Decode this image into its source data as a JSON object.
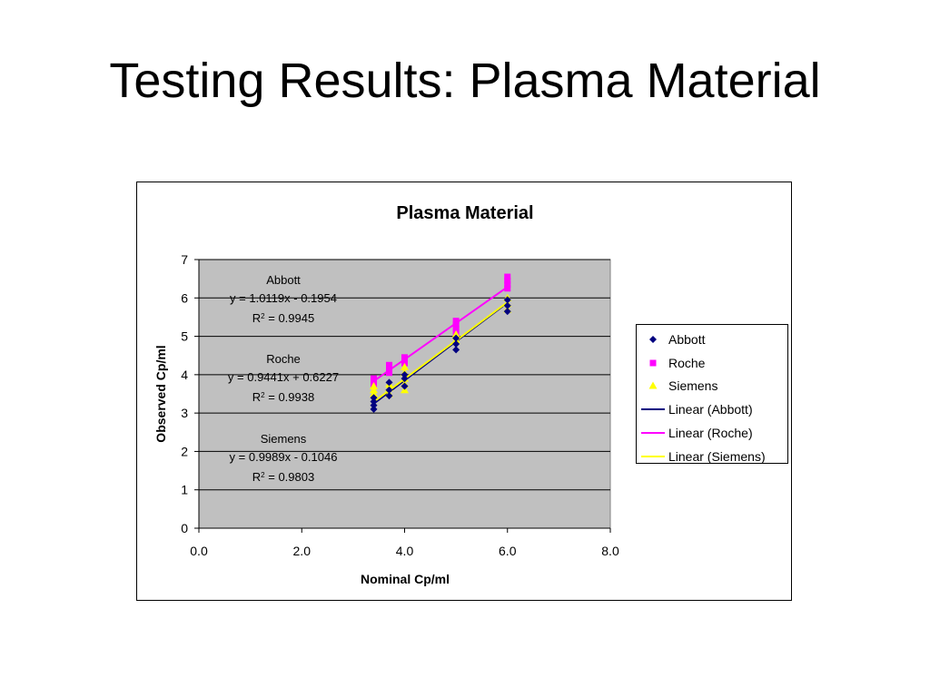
{
  "slide": {
    "title": "Testing Results: Plasma Material"
  },
  "colors": {
    "abbott": "#000080",
    "roche": "#FF00FF",
    "siemens": "#FFFF00",
    "plot_bg": "#C0C0C0"
  },
  "chart_data": {
    "type": "scatter",
    "title": "Plasma Material",
    "xlabel": "Nominal Cp/ml",
    "ylabel": "Observed Cp/ml",
    "xlim": [
      0,
      8
    ],
    "ylim": [
      0,
      7
    ],
    "x_ticks": [
      "0.0",
      "2.0",
      "4.0",
      "6.0",
      "8.0"
    ],
    "x_tick_values": [
      0,
      2,
      4,
      6,
      8
    ],
    "y_ticks": [
      "0",
      "1",
      "2",
      "3",
      "4",
      "5",
      "6",
      "7"
    ],
    "y_tick_values": [
      0,
      1,
      2,
      3,
      4,
      5,
      6,
      7
    ],
    "grid": "horizontal",
    "legend_position": "right",
    "series": [
      {
        "name": "Abbott",
        "marker": "diamond",
        "color": "#000080",
        "points": [
          [
            3.4,
            3.1
          ],
          [
            3.4,
            3.2
          ],
          [
            3.4,
            3.3
          ],
          [
            3.4,
            3.4
          ],
          [
            3.7,
            3.45
          ],
          [
            3.7,
            3.6
          ],
          [
            3.7,
            3.8
          ],
          [
            4.0,
            3.7
          ],
          [
            4.0,
            3.9
          ],
          [
            4.0,
            4.0
          ],
          [
            5.0,
            4.65
          ],
          [
            5.0,
            4.8
          ],
          [
            5.0,
            4.95
          ],
          [
            6.0,
            5.65
          ],
          [
            6.0,
            5.8
          ],
          [
            6.0,
            5.95
          ]
        ]
      },
      {
        "name": "Roche",
        "marker": "square",
        "color": "#FF00FF",
        "points": [
          [
            3.4,
            3.75
          ],
          [
            3.4,
            3.85
          ],
          [
            3.4,
            3.9
          ],
          [
            3.7,
            4.05
          ],
          [
            3.7,
            4.15
          ],
          [
            3.7,
            4.25
          ],
          [
            4.0,
            4.3
          ],
          [
            4.0,
            4.4
          ],
          [
            4.0,
            4.45
          ],
          [
            5.0,
            5.1
          ],
          [
            5.0,
            5.2
          ],
          [
            5.0,
            5.3
          ],
          [
            5.0,
            5.4
          ],
          [
            6.0,
            6.25
          ],
          [
            6.0,
            6.35
          ],
          [
            6.0,
            6.45
          ],
          [
            6.0,
            6.55
          ]
        ]
      },
      {
        "name": "Siemens",
        "marker": "triangle",
        "color": "#FFFF00",
        "points": [
          [
            3.4,
            3.5
          ],
          [
            3.4,
            3.6
          ],
          [
            3.4,
            3.7
          ],
          [
            3.7,
            3.5
          ],
          [
            3.7,
            3.65
          ],
          [
            3.7,
            3.75
          ],
          [
            4.0,
            3.6
          ],
          [
            4.0,
            3.75
          ],
          [
            4.0,
            3.9
          ],
          [
            4.0,
            4.05
          ],
          [
            4.0,
            4.2
          ],
          [
            5.0,
            4.9
          ],
          [
            5.0,
            5.0
          ],
          [
            5.0,
            5.05
          ],
          [
            6.0,
            5.7
          ],
          [
            6.0,
            5.85
          ],
          [
            6.0,
            6.0
          ]
        ]
      }
    ],
    "trendlines": [
      {
        "name": "Linear (Abbott)",
        "series": "Abbott",
        "color": "#000080",
        "slope": 1.0119,
        "intercept": -0.1954,
        "x_range": [
          3.4,
          6.0
        ]
      },
      {
        "name": "Linear (Roche)",
        "series": "Roche",
        "color": "#FF00FF",
        "slope": 0.9441,
        "intercept": 0.6227,
        "x_range": [
          3.4,
          6.0
        ]
      },
      {
        "name": "Linear (Siemens)",
        "series": "Siemens",
        "color": "#FFFF00",
        "slope": 0.9989,
        "intercept": -0.1046,
        "x_range": [
          3.4,
          6.0
        ]
      }
    ],
    "annotations": [
      {
        "label": "Abbott",
        "equation": "y = 1.0119x - 0.1954",
        "r2_prefix": "R",
        "r2_sup": "2",
        "r2_value": " = 0.9945"
      },
      {
        "label": "Roche",
        "equation": "y = 0.9441x + 0.6227",
        "r2_prefix": "R",
        "r2_sup": "2",
        "r2_value": " = 0.9938"
      },
      {
        "label": "Siemens",
        "equation": "y = 0.9989x - 0.1046",
        "r2_prefix": "R",
        "r2_sup": "2",
        "r2_value": " = 0.9803"
      }
    ],
    "legend": [
      {
        "label": "Abbott",
        "kind": "marker",
        "marker": "diamond",
        "color": "#000080"
      },
      {
        "label": "Roche",
        "kind": "marker",
        "marker": "square",
        "color": "#FF00FF"
      },
      {
        "label": "Siemens",
        "kind": "marker",
        "marker": "triangle",
        "color": "#FFFF00"
      },
      {
        "label": "Linear (Abbott)",
        "kind": "line",
        "color": "#000080"
      },
      {
        "label": "Linear (Roche)",
        "kind": "line",
        "color": "#FF00FF"
      },
      {
        "label": "Linear (Siemens)",
        "kind": "line",
        "color": "#FFFF00"
      }
    ]
  }
}
